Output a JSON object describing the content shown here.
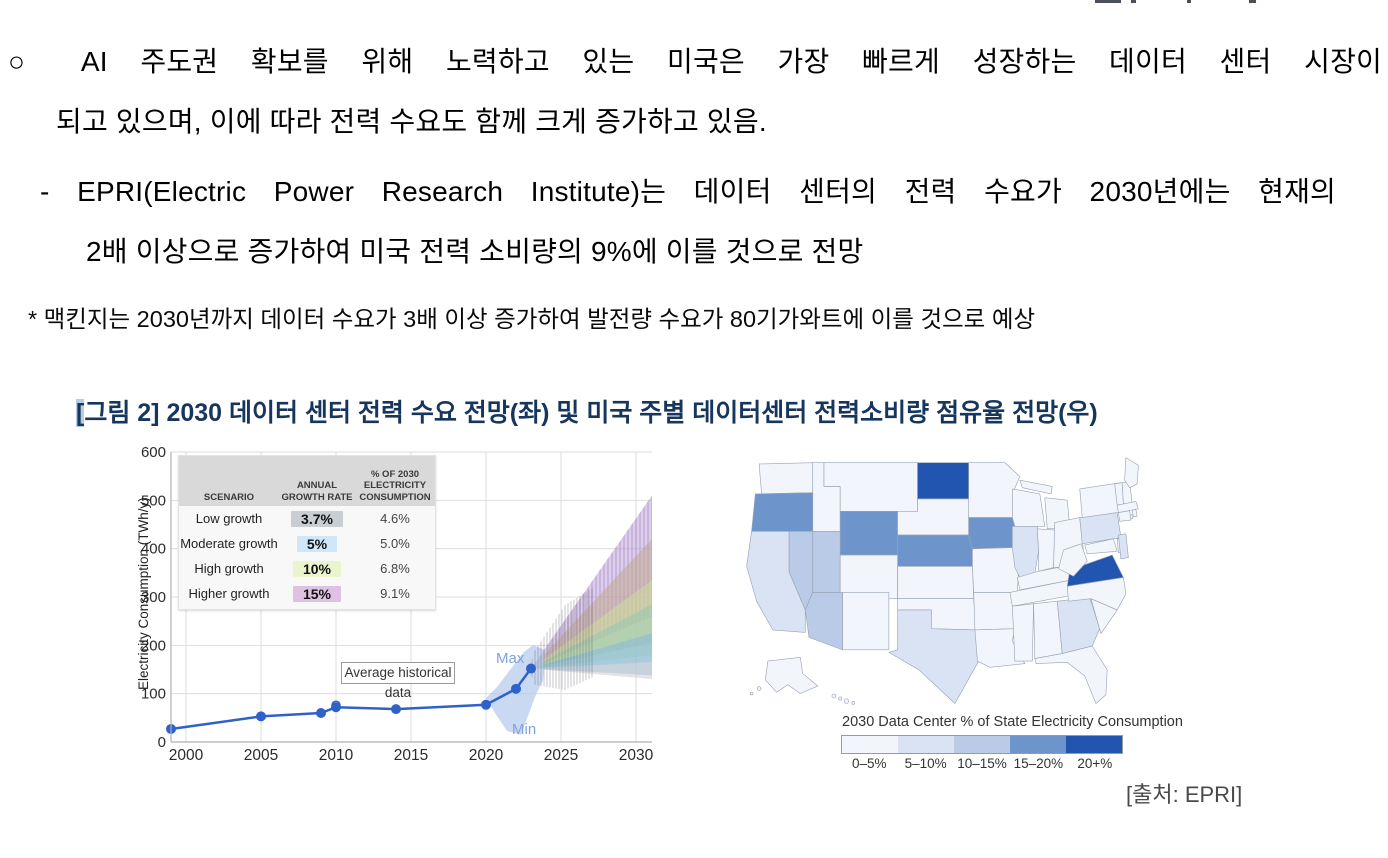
{
  "body": {
    "p1": {
      "lines": [
        "○ AI 주도권 확보를 위해 노력하고 있는 미국은 가장 빠르게 성장하는 데이터 센터 시장이",
        "되고 있으며, 이에 따라 전력 수요도 함께 크게 증가하고 있음."
      ]
    },
    "p2": {
      "lines": [
        "- EPRI(Electric Power Research Institute)는 데이터 센터의 전력 수요가 2030년에는 현재의",
        "2배 이상으로 증가하여 미국 전력 소비량의 9%에 이를 것으로 전망"
      ]
    },
    "note": "* 맥킨지는 2030년까지 데이터 수요가 3배 이상 증가하여 발전량 수요가 80기가와트에 이를 것으로 예상",
    "caption": {
      "highlight": "[",
      "rest": "그림 2] 2030 데이터 센터 전력 수요 전망(좌) 및 미국 주별 데이터센터 전력소비량 점유율 전망(우)"
    },
    "source": "[출처: EPRI]"
  },
  "chart_data": [
    {
      "type": "line",
      "title": "2030 데이터 센터 전력 수요 전망",
      "ylabel": "Electricity Consumption (TWh/y)",
      "xlabel": "",
      "xlim": [
        1999,
        2031
      ],
      "ylim": [
        0,
        600
      ],
      "x_ticks": [
        2000,
        2005,
        2010,
        2015,
        2020,
        2025,
        2030
      ],
      "y_ticks": [
        0,
        100,
        200,
        300,
        400,
        500,
        600
      ],
      "grid": true,
      "series": [
        {
          "name": "Average historical data",
          "x": [
            1999,
            2005,
            2009,
            2010,
            2014,
            2020,
            2022,
            2023
          ],
          "values": [
            27,
            53,
            60,
            72,
            68,
            77,
            110,
            152
          ],
          "color": "#2f62c9"
        }
      ],
      "uncertainty_band": {
        "x_start": 2020,
        "x_end": 2023.7,
        "max_label": "Max",
        "min_label": "Min"
      },
      "box_label": "Average historical data",
      "projections": [
        {
          "scenario": "Higher growth 15%",
          "color": "#b99bd6",
          "range_2030": [
            260,
            510
          ]
        },
        {
          "scenario": "overlap",
          "color": "#bfa888",
          "range_2030": [
            205,
            420
          ]
        },
        {
          "scenario": "High growth 10%",
          "color": "#cde29a",
          "range_2030": [
            180,
            335
          ]
        },
        {
          "scenario": "overlap-teal",
          "color": "#8fc7b1",
          "range_2030": [
            165,
            285
          ]
        },
        {
          "scenario": "Moderate growth 5%",
          "color": "#85b5e3",
          "range_2030": [
            138,
            225
          ]
        },
        {
          "scenario": "Low growth 3.7%",
          "color": "#c9c9c9",
          "range_2030": [
            130,
            168
          ]
        }
      ],
      "table": {
        "headers": [
          "SCENARIO",
          "ANNUAL\nGROWTH RATE",
          "% OF 2030\nELECTRICITY\nCONSUMPTION"
        ],
        "rows": [
          {
            "scenario": "Low growth",
            "rate": "3.7%",
            "rate_bg": "#c9cdd4",
            "pct": "4.6%"
          },
          {
            "scenario": "Moderate growth",
            "rate": "5%",
            "rate_bg": "#cfe7f8",
            "pct": "5.0%"
          },
          {
            "scenario": "High growth",
            "rate": "10%",
            "rate_bg": "#eaf5cd",
            "pct": "6.8%"
          },
          {
            "scenario": "Higher growth",
            "rate": "15%",
            "rate_bg": "#ddc3e1",
            "pct": "9.1%"
          }
        ]
      }
    },
    {
      "type": "choropleth",
      "title": "미국 주별 데이터센터 전력소비량 점유율 전망",
      "legend_title": "2030 Data Center % of State Electricity Consumption",
      "bins": [
        {
          "label": "0–5%",
          "color": "#f2f6fc"
        },
        {
          "label": "5–10%",
          "color": "#d9e3f3"
        },
        {
          "label": "10–15%",
          "color": "#b9cbe6"
        },
        {
          "label": "15–20%",
          "color": "#6e95cb"
        },
        {
          "label": "20+%",
          "color": "#2155af"
        }
      ],
      "default_bin": "0–5%",
      "states": {
        "ND": "20+%",
        "VA": "20+%",
        "OR": "15–20%",
        "WY": "15–20%",
        "NE": "15–20%",
        "IA": "15–20%",
        "NV": "10–15%",
        "UT": "10–15%",
        "AZ": "10–15%",
        "CA": "5–10%",
        "TX": "5–10%",
        "IL": "5–10%",
        "PA": "5–10%",
        "GA": "5–10%",
        "NJ": "5–10%"
      }
    }
  ]
}
